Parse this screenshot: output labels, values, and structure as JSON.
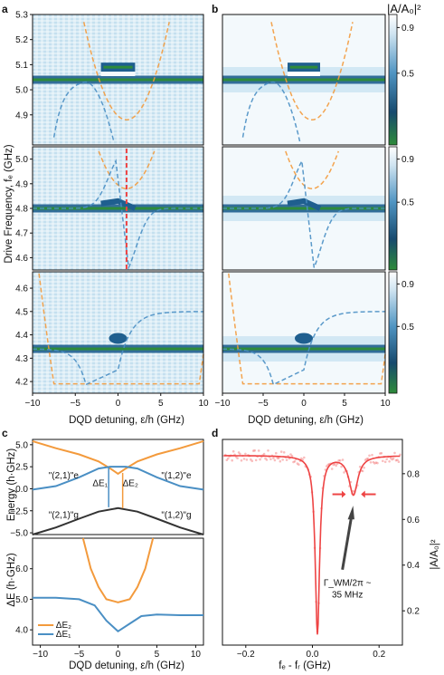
{
  "figure": {
    "panel_letters": [
      "a",
      "b",
      "c",
      "d"
    ],
    "colorbar_label": "|A/A₀|²",
    "colorbar_ticks": [
      "0.9",
      "0.5"
    ]
  },
  "colors": {
    "orange": "#f39a3c",
    "blue": "#4a8fc4",
    "dark": "#333333",
    "red": "#ee4444",
    "resonance_green": "#2e8b3a",
    "map_blue": "#1f5f8f"
  },
  "chart_data": [
    {
      "id": "a-top",
      "type": "heatmap",
      "xlabel": "DQD detuning, ε/h (GHz)",
      "ylabel": "Drive Frequency, fₑ (GHz)",
      "xlim": [
        -10,
        10
      ],
      "ylim": [
        4.78,
        5.3
      ],
      "yticks": [
        "4.9",
        "5.0",
        "5.1",
        "5.2",
        "5.3"
      ],
      "resonance_ghz": 5.04
    },
    {
      "id": "a-mid",
      "type": "heatmap",
      "xlim": [
        -10,
        10
      ],
      "ylim": [
        4.55,
        5.05
      ],
      "yticks": [
        "4.6",
        "4.7",
        "4.8",
        "4.9",
        "5.0"
      ],
      "resonance_ghz": 4.8,
      "marker_x": 1
    },
    {
      "id": "a-bot",
      "type": "heatmap",
      "xlim": [
        -10,
        10
      ],
      "xticks": [
        "−10",
        "−5",
        "0",
        "5",
        "10"
      ],
      "ylim": [
        4.15,
        4.67
      ],
      "yticks": [
        "4.2",
        "4.3",
        "4.4",
        "4.5",
        "4.6"
      ],
      "resonance_ghz": 4.34
    },
    {
      "id": "c-top",
      "type": "line",
      "ylabel": "Energy (h·GHz)",
      "xlim": [
        -11,
        11
      ],
      "ylim": [
        -5.2,
        5.6
      ],
      "yticks": [
        "5.0",
        "2.5",
        "0.0",
        "−2.5",
        "−5.0"
      ],
      "series": [
        {
          "name": "\"(2,1)\"e / \"(1,2)\"e (top)",
          "x": [
            -11,
            -8,
            -5,
            -2.5,
            -1,
            0,
            1,
            2.5,
            5,
            8,
            11
          ],
          "y": [
            5.4,
            4.6,
            3.9,
            3.1,
            2.3,
            1.7,
            2.3,
            3.1,
            3.9,
            4.6,
            5.4
          ]
        },
        {
          "name": "\"(2,1)\"e / \"(1,2)\"e",
          "x": [
            -11,
            -8,
            -5,
            -2.5,
            -1,
            0,
            1,
            2.5,
            5,
            8,
            11
          ],
          "y": [
            -0.1,
            0.3,
            1.3,
            2.3,
            2.5,
            2.5,
            2.5,
            2.3,
            1.3,
            0.3,
            -0.1
          ]
        },
        {
          "name": "\"(2,1)\"g / \"(1,2)\"g",
          "x": [
            -11,
            -8,
            -5,
            -2.5,
            0,
            2.5,
            5,
            8,
            11
          ],
          "y": [
            -5.2,
            -4.4,
            -3.4,
            -2.6,
            -2.2,
            -2.6,
            -3.4,
            -4.4,
            -5.2
          ]
        }
      ],
      "annotations": [
        "\"(2,1)\"e",
        "\"(1,2)\"e",
        "\"(2,1)\"g",
        "\"(1,2)\"g",
        "ΔE₁",
        "ΔE₂"
      ]
    },
    {
      "id": "c-bot",
      "type": "line",
      "xlabel": "DQD detuning, ε/h (GHz)",
      "ylabel": "ΔE (h·GHz)",
      "xlim": [
        -11,
        11
      ],
      "ylim": [
        3.5,
        7.0
      ],
      "xticks": [
        "−10",
        "−5",
        "0",
        "5",
        "10"
      ],
      "yticks": [
        "4.0",
        "5.0",
        "6.0"
      ],
      "series": [
        {
          "name": "ΔE₂",
          "x": [
            -4.5,
            -3.5,
            -2.5,
            -1.5,
            0,
            1.5,
            2.5,
            3.5,
            4.5
          ],
          "y": [
            7.0,
            6.0,
            5.4,
            5.0,
            4.9,
            5.0,
            5.4,
            6.0,
            7.0
          ]
        },
        {
          "name": "ΔE₁",
          "x": [
            -11,
            -8,
            -5,
            -3,
            -1.5,
            0,
            1.5,
            3,
            5,
            8,
            11
          ],
          "y": [
            5.05,
            5.05,
            5.0,
            4.8,
            4.3,
            3.95,
            4.2,
            4.45,
            4.5,
            4.48,
            4.48
          ]
        }
      ]
    },
    {
      "id": "d",
      "type": "scatter",
      "xlabel": "fₑ - fᵣ (GHz)",
      "ylabel": "|A/A₀|²",
      "xlim": [
        -0.27,
        0.27
      ],
      "ylim": [
        0.05,
        0.95
      ],
      "xticks": [
        "−0.2",
        "0.0",
        "0.2"
      ],
      "yticks": [
        "0.8",
        "0.6",
        "0.4",
        "0.2"
      ],
      "baseline": 0.88,
      "dips": [
        {
          "center": 0.015,
          "depth": 0.78,
          "width": 0.008
        },
        {
          "center": 0.123,
          "depth": 0.17,
          "width": 0.016
        }
      ],
      "annotation": "Γ_WM/2π ~\n35 MHz"
    }
  ]
}
